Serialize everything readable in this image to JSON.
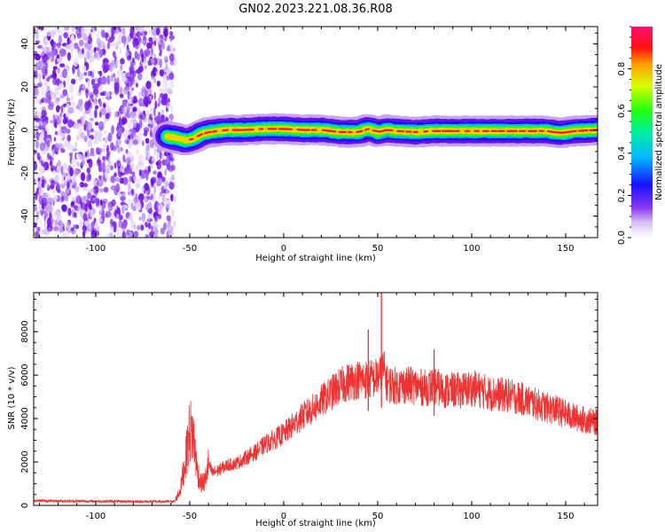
{
  "figure": {
    "title": "GN02.2023.221.08.36.R08"
  },
  "colors": {
    "snr_line": "#ee3333",
    "noise": "#7a1fe6",
    "axis": "#000000"
  },
  "chart_data": [
    {
      "type": "heatmap",
      "xlabel": "Height of straight line (km)",
      "ylabel": "Frequency (Hz)",
      "xlim": [
        -133,
        167
      ],
      "ylim": [
        -50,
        48
      ],
      "xticks": [
        -100,
        -50,
        0,
        50,
        100,
        150
      ],
      "xtick_labels": [
        "-100",
        "-50",
        "0",
        "50",
        "100",
        "150"
      ],
      "yticks": [
        -40,
        -20,
        0,
        20,
        40
      ],
      "ytick_labels": [
        "-40",
        "-20",
        "0",
        "20",
        "40"
      ],
      "noise_region_x": [
        -133,
        -58
      ],
      "signal_start_x": -62,
      "signal_trace": {
        "x": [
          -62,
          -56,
          -52,
          -48,
          -44,
          -40,
          -30,
          -20,
          -10,
          0,
          10,
          20,
          30,
          40,
          45,
          50,
          55,
          60,
          70,
          80,
          90,
          100,
          110,
          120,
          130,
          140,
          147,
          155,
          167
        ],
        "freq": [
          -3,
          -4,
          -5,
          -4,
          -2,
          -1,
          0,
          0,
          0.5,
          0.5,
          0,
          0,
          -1,
          -1,
          0.5,
          -1,
          0,
          -0.5,
          -1,
          -0.5,
          -0.5,
          -0.5,
          -0.5,
          -0.5,
          -0.5,
          -0.5,
          -1.5,
          -0.5,
          0
        ]
      },
      "colorbar": {
        "label": "Normalized spectral amplitude",
        "range": [
          0,
          1
        ],
        "ticks": [
          0,
          0.2,
          0.4,
          0.6,
          0.8
        ],
        "tick_labels": [
          "0.0",
          "0.2",
          "0.4",
          "0.6",
          "0.8"
        ],
        "colormap": "rainbow (purple → blue → cyan → green → yellow → red → magenta)"
      }
    },
    {
      "type": "line",
      "xlabel": "Height of straight line (km)",
      "ylabel": "SNR (10 * v/v)",
      "xlim": [
        -133,
        167
      ],
      "ylim": [
        0,
        9800
      ],
      "xticks": [
        -100,
        -50,
        0,
        50,
        100,
        150
      ],
      "xtick_labels": [
        "-100",
        "-50",
        "0",
        "50",
        "100",
        "150"
      ],
      "yticks": [
        0,
        2000,
        4000,
        6000,
        8000
      ],
      "ytick_labels": [
        "0",
        "2000",
        "4000",
        "6000",
        "8000"
      ],
      "series": [
        {
          "x": [
            -133,
            -120,
            -100,
            -80,
            -65,
            -58,
            -55,
            -52,
            -50,
            -48,
            -46,
            -44,
            -42,
            -40,
            -38,
            -35,
            -30,
            -25,
            -20,
            -15,
            -10,
            -5,
            0,
            5,
            10,
            15,
            20,
            25,
            30,
            35,
            40,
            45,
            48,
            50,
            52,
            53,
            55,
            60,
            65,
            70,
            75,
            80,
            85,
            90,
            95,
            100,
            105,
            110,
            115,
            120,
            125,
            130,
            135,
            140,
            145,
            150,
            155,
            160,
            167
          ],
          "y": [
            220,
            200,
            190,
            180,
            170,
            180,
            700,
            2200,
            3500,
            3200,
            1600,
            1000,
            1100,
            1900,
            1500,
            1600,
            1850,
            1950,
            2200,
            2450,
            2800,
            3050,
            3300,
            3700,
            4100,
            4400,
            4800,
            5150,
            5500,
            5700,
            5800,
            5800,
            5850,
            5900,
            6000,
            6300,
            5600,
            5500,
            5550,
            5500,
            5400,
            5500,
            5300,
            5300,
            5300,
            5400,
            5300,
            5150,
            5100,
            5050,
            4950,
            4800,
            4650,
            4500,
            4400,
            4200,
            4050,
            3950,
            3800
          ]
        }
      ],
      "annotations": [
        {
          "x": 45,
          "y": 8100
        },
        {
          "x": 52,
          "y": 9800
        },
        {
          "x": 80,
          "y": 7200
        }
      ]
    }
  ]
}
